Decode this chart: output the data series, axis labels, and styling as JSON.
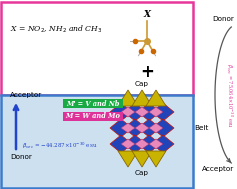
{
  "formula_text_1": "X = NO",
  "formula_text_2": ", NH",
  "formula_text_3": " and CH",
  "top_box_color": "#e8379a",
  "bottom_box_color": "#3a7bcc",
  "bottom_bg_color": "#cde0f0",
  "label_mprime": "M' = V and Nb",
  "label_m": "M = W and Mo",
  "label_mprime_bg": "#1aaa44",
  "label_m_bg": "#dd3399",
  "label_cap_top": "Cap",
  "label_cap_bottom": "Cap",
  "label_belt": "Belt",
  "label_acceptor_left": "Acceptor",
  "label_donor_left": "Donor",
  "label_donor_right": "Donor",
  "label_acceptor_right": "Acceptor",
  "arrow_color_left": "#2244cc",
  "beta_color_left": "#2244cc",
  "beta_color_right": "#dd3399",
  "poly_blue": "#2244bb",
  "poly_blue_dark": "#1a2d88",
  "poly_yellow": "#c8b400",
  "poly_yellow_light": "#e0cc20",
  "poly_pink": "#e888bb",
  "poly_edge_red": "#cc1100",
  "poly_edge_yellow": "#886600"
}
